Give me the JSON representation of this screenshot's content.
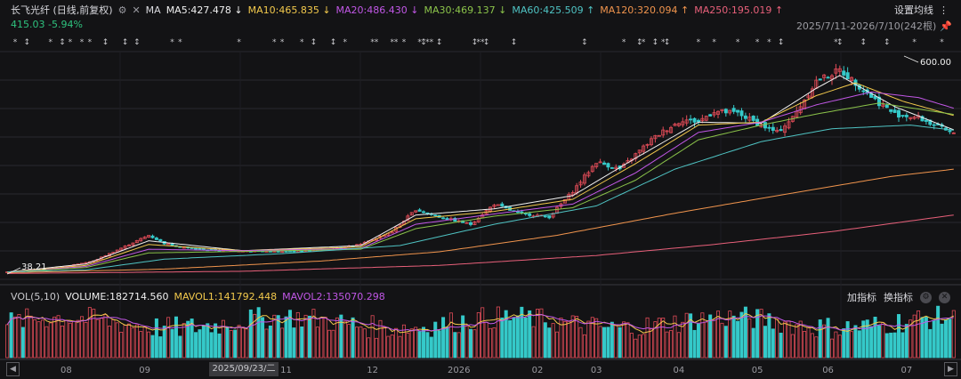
{
  "header": {
    "stock_title": "长飞光纤 (日线,前复权)",
    "ma_label": "MA",
    "ma_values": [
      {
        "text": "MA5:427.478 ↓",
        "color": "#f0f0f0"
      },
      {
        "text": "MA10:465.835 ↓",
        "color": "#f2c94c"
      },
      {
        "text": "MA20:486.430 ↓",
        "color": "#c157e6"
      },
      {
        "text": "MA30:469.137 ↓",
        "color": "#8bc34a"
      },
      {
        "text": "MA60:425.509 ↑",
        "color": "#4fc3c3"
      },
      {
        "text": "MA120:320.094 ↑",
        "color": "#f0944d"
      },
      {
        "text": "MA250:195.019 ↑",
        "color": "#e8607a"
      }
    ],
    "price_change": "415.03  -5.94%",
    "setting_label": "设置均线",
    "date_range": "2025/7/11-2026/7/10(242根)"
  },
  "chart_data": {
    "type": "candlestick",
    "price_high_label": "600.00",
    "price_low_label": "38.21",
    "ylim": [
      20,
      640
    ],
    "x_tick_labels": [
      "08",
      "09",
      "11",
      "12",
      "2026",
      "02",
      "03",
      "04",
      "05",
      "06",
      "07"
    ],
    "crosshair_date": "2025/09/23/二",
    "close_path": [
      [
        0,
        40
      ],
      [
        12,
        50
      ],
      [
        22,
        70
      ],
      [
        30,
        110
      ],
      [
        36,
        140
      ],
      [
        40,
        118
      ],
      [
        46,
        105
      ],
      [
        52,
        100
      ],
      [
        60,
        98
      ],
      [
        70,
        95
      ],
      [
        80,
        100
      ],
      [
        90,
        115
      ],
      [
        98,
        150
      ],
      [
        104,
        210
      ],
      [
        110,
        190
      ],
      [
        118,
        170
      ],
      [
        124,
        225
      ],
      [
        130,
        200
      ],
      [
        138,
        190
      ],
      [
        144,
        260
      ],
      [
        150,
        340
      ],
      [
        156,
        320
      ],
      [
        160,
        360
      ],
      [
        164,
        400
      ],
      [
        168,
        430
      ],
      [
        172,
        455
      ],
      [
        176,
        450
      ],
      [
        180,
        478
      ],
      [
        186,
        472
      ],
      [
        192,
        440
      ],
      [
        196,
        420
      ],
      [
        200,
        460
      ],
      [
        206,
        560
      ],
      [
        212,
        590
      ],
      [
        216,
        555
      ],
      [
        222,
        500
      ],
      [
        226,
        470
      ],
      [
        232,
        460
      ],
      [
        236,
        440
      ],
      [
        241,
        415
      ]
    ],
    "ma_paths": {
      "MA5": [
        [
          0,
          40
        ],
        [
          20,
          62
        ],
        [
          36,
          125
        ],
        [
          60,
          98
        ],
        [
          90,
          112
        ],
        [
          104,
          195
        ],
        [
          124,
          212
        ],
        [
          144,
          248
        ],
        [
          160,
          350
        ],
        [
          176,
          448
        ],
        [
          192,
          445
        ],
        [
          206,
          540
        ],
        [
          212,
          575
        ],
        [
          226,
          490
        ],
        [
          241,
          427
        ]
      ],
      "MA10": [
        [
          0,
          40
        ],
        [
          20,
          58
        ],
        [
          36,
          115
        ],
        [
          60,
          98
        ],
        [
          90,
          108
        ],
        [
          104,
          185
        ],
        [
          124,
          205
        ],
        [
          144,
          238
        ],
        [
          160,
          335
        ],
        [
          176,
          440
        ],
        [
          192,
          448
        ],
        [
          206,
          520
        ],
        [
          216,
          555
        ],
        [
          228,
          505
        ],
        [
          241,
          466
        ]
      ],
      "MA20": [
        [
          0,
          40
        ],
        [
          20,
          55
        ],
        [
          36,
          102
        ],
        [
          60,
          98
        ],
        [
          90,
          104
        ],
        [
          104,
          170
        ],
        [
          124,
          198
        ],
        [
          144,
          225
        ],
        [
          160,
          310
        ],
        [
          176,
          420
        ],
        [
          192,
          448
        ],
        [
          206,
          495
        ],
        [
          220,
          530
        ],
        [
          232,
          515
        ],
        [
          241,
          486
        ]
      ],
      "MA30": [
        [
          0,
          40
        ],
        [
          20,
          52
        ],
        [
          36,
          92
        ],
        [
          60,
          96
        ],
        [
          90,
          102
        ],
        [
          104,
          158
        ],
        [
          124,
          192
        ],
        [
          144,
          215
        ],
        [
          160,
          290
        ],
        [
          176,
          400
        ],
        [
          192,
          440
        ],
        [
          206,
          470
        ],
        [
          222,
          500
        ],
        [
          241,
          469
        ]
      ],
      "MA60": [
        [
          0,
          40
        ],
        [
          20,
          46
        ],
        [
          40,
          75
        ],
        [
          70,
          90
        ],
        [
          100,
          112
        ],
        [
          124,
          170
        ],
        [
          150,
          220
        ],
        [
          170,
          320
        ],
        [
          192,
          395
        ],
        [
          210,
          430
        ],
        [
          230,
          440
        ],
        [
          241,
          426
        ]
      ],
      "MA120": [
        [
          0,
          38
        ],
        [
          40,
          48
        ],
        [
          80,
          70
        ],
        [
          110,
          95
        ],
        [
          140,
          140
        ],
        [
          170,
          200
        ],
        [
          200,
          255
        ],
        [
          225,
          300
        ],
        [
          241,
          320
        ]
      ],
      "MA250": [
        [
          0,
          36
        ],
        [
          60,
          42
        ],
        [
          110,
          58
        ],
        [
          150,
          85
        ],
        [
          180,
          115
        ],
        [
          210,
          150
        ],
        [
          241,
          195
        ]
      ]
    },
    "volume": {
      "vol_label": "VOL(5,10)",
      "volume_text": "VOLUME:182714.560",
      "mavol1_text": "MAVOL1:141792.448",
      "mavol2_text": "MAVOL2:135070.298",
      "current": 182714.56,
      "mavol1": 141792.448,
      "mavol2": 135070.298,
      "up_color": "#e04b57",
      "down_color": "#35c9c9"
    }
  },
  "volume_tools": {
    "add_indicator": "加指标",
    "switch_indicator": "换指标"
  },
  "colors": {
    "up": "#e04b57",
    "down": "#35c9c9",
    "background": "#131315",
    "grid": "#2a2a2e"
  }
}
